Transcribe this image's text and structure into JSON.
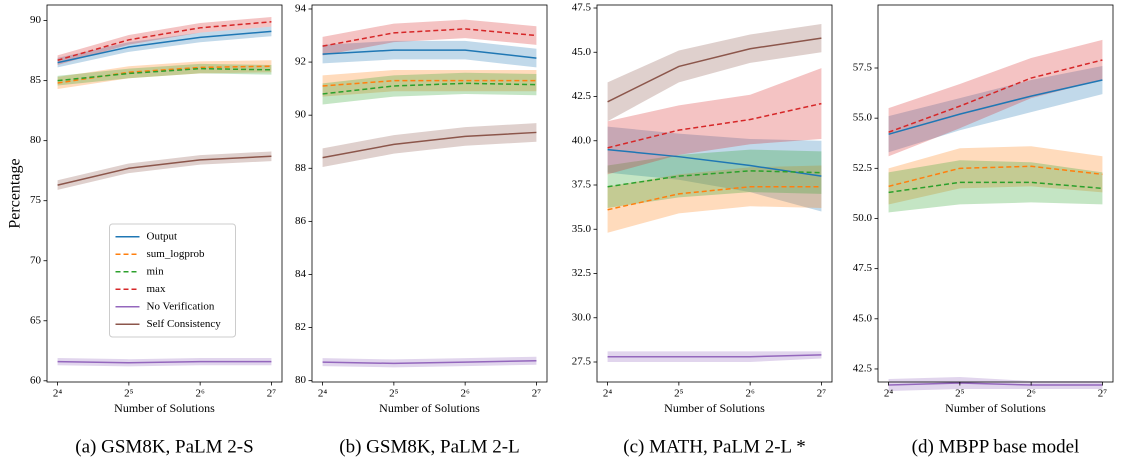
{
  "chart_data": [
    {
      "type": "line",
      "caption": "(a) GSM8K, PaLM 2-S",
      "ylabel": "Percentage",
      "xlabel": "Number of Solutions",
      "legend": "lower center",
      "x": [
        16,
        32,
        64,
        128
      ],
      "xscale": "log2",
      "xticks": [
        {
          "value": 16,
          "label": "2⁴"
        },
        {
          "value": 32,
          "label": "2⁵"
        },
        {
          "value": 64,
          "label": "2⁶"
        },
        {
          "value": 128,
          "label": "2⁷"
        }
      ],
      "ylim": [
        59.9,
        91.3
      ],
      "yticks": [
        60,
        65,
        70,
        75,
        80,
        85,
        90
      ],
      "series": [
        {
          "name": "Output",
          "color": "#1f77b4",
          "dashed": false,
          "values": [
            86.5,
            87.8,
            88.6,
            89.1
          ],
          "errors": [
            0.4,
            0.4,
            0.4,
            0.4
          ]
        },
        {
          "name": "sum_logprob",
          "color": "#ff7f0e",
          "dashed": true,
          "values": [
            84.8,
            85.7,
            86.1,
            86.2
          ],
          "errors": [
            0.5,
            0.5,
            0.5,
            0.5
          ]
        },
        {
          "name": "min",
          "color": "#2ca02c",
          "dashed": true,
          "values": [
            85.0,
            85.6,
            86.0,
            85.9
          ],
          "errors": [
            0.4,
            0.4,
            0.4,
            0.4
          ]
        },
        {
          "name": "max",
          "color": "#d62728",
          "dashed": true,
          "values": [
            86.7,
            88.4,
            89.4,
            89.9
          ],
          "errors": [
            0.4,
            0.4,
            0.4,
            0.4
          ]
        },
        {
          "name": "No Verification",
          "color": "#9467bd",
          "dashed": false,
          "values": [
            61.6,
            61.5,
            61.6,
            61.6
          ],
          "errors": [
            0.3,
            0.3,
            0.3,
            0.3
          ]
        },
        {
          "name": "Self Consistency",
          "color": "#8c564b",
          "dashed": false,
          "values": [
            76.3,
            77.7,
            78.4,
            78.7
          ],
          "errors": [
            0.4,
            0.4,
            0.4,
            0.4
          ]
        }
      ]
    },
    {
      "type": "line",
      "caption": "(b) GSM8K, PaLM 2-L",
      "xlabel": "Number of Solutions",
      "x": [
        16,
        32,
        64,
        128
      ],
      "xscale": "log2",
      "xticks": [
        {
          "value": 16,
          "label": "2⁴"
        },
        {
          "value": 32,
          "label": "2⁵"
        },
        {
          "value": 64,
          "label": "2⁶"
        },
        {
          "value": 128,
          "label": "2⁷"
        }
      ],
      "ylim": [
        79.95,
        94.15
      ],
      "yticks": [
        80,
        82,
        84,
        86,
        88,
        90,
        92,
        94
      ],
      "series": [
        {
          "color": "#1f77b4",
          "dashed": false,
          "values": [
            92.3,
            92.45,
            92.45,
            92.15
          ],
          "errors": [
            0.35,
            0.35,
            0.35,
            0.35
          ]
        },
        {
          "color": "#ff7f0e",
          "dashed": true,
          "values": [
            91.1,
            91.3,
            91.3,
            91.3
          ],
          "errors": [
            0.4,
            0.4,
            0.4,
            0.4
          ]
        },
        {
          "color": "#2ca02c",
          "dashed": true,
          "values": [
            90.8,
            91.1,
            91.2,
            91.15
          ],
          "errors": [
            0.4,
            0.4,
            0.4,
            0.4
          ]
        },
        {
          "color": "#d62728",
          "dashed": true,
          "values": [
            92.6,
            93.1,
            93.25,
            93.0
          ],
          "errors": [
            0.35,
            0.35,
            0.35,
            0.35
          ]
        },
        {
          "color": "#9467bd",
          "dashed": false,
          "values": [
            80.7,
            80.65,
            80.7,
            80.75
          ],
          "errors": [
            0.15,
            0.15,
            0.15,
            0.15
          ]
        },
        {
          "color": "#8c564b",
          "dashed": false,
          "values": [
            88.4,
            88.9,
            89.2,
            89.35
          ],
          "errors": [
            0.35,
            0.35,
            0.35,
            0.35
          ]
        }
      ]
    },
    {
      "type": "line",
      "caption": "(c) MATH, PaLM 2-L *",
      "xlabel": "Number of Solutions",
      "x": [
        16,
        32,
        64,
        128
      ],
      "xscale": "log2",
      "xticks": [
        {
          "value": 16,
          "label": "2⁴"
        },
        {
          "value": 32,
          "label": "2⁵"
        },
        {
          "value": 64,
          "label": "2⁶"
        },
        {
          "value": 128,
          "label": "2⁷"
        }
      ],
      "ylim": [
        26.37,
        47.67
      ],
      "yticks": [
        27.5,
        {
          "value": 30,
          "label": "30.0"
        },
        32.5,
        {
          "value": 35,
          "label": "35.0"
        },
        37.5,
        {
          "value": 40,
          "label": "40.0"
        },
        42.5,
        {
          "value": 45,
          "label": "45.0"
        },
        47.5
      ],
      "series": [
        {
          "color": "#1f77b4",
          "dashed": false,
          "values": [
            39.5,
            39.1,
            38.6,
            38.0
          ],
          "errors": [
            1.3,
            1.3,
            1.5,
            2.0
          ]
        },
        {
          "color": "#ff7f0e",
          "dashed": true,
          "values": [
            36.1,
            37.0,
            37.4,
            37.4
          ],
          "errors": [
            1.3,
            1.1,
            1.1,
            1.2
          ]
        },
        {
          "color": "#2ca02c",
          "dashed": true,
          "values": [
            37.4,
            38.0,
            38.3,
            38.2
          ],
          "errors": [
            1.2,
            1.2,
            1.2,
            1.2
          ]
        },
        {
          "color": "#d62728",
          "dashed": true,
          "values": [
            39.6,
            40.6,
            41.2,
            42.1
          ],
          "errors": [
            1.5,
            1.4,
            1.4,
            2.0
          ]
        },
        {
          "color": "#9467bd",
          "dashed": false,
          "values": [
            27.8,
            27.8,
            27.8,
            27.9
          ],
          "errors": [
            0.3,
            0.3,
            0.3,
            0.2
          ]
        },
        {
          "color": "#8c564b",
          "dashed": false,
          "values": [
            42.2,
            44.2,
            45.2,
            45.8
          ],
          "errors": [
            1.1,
            0.9,
            0.8,
            0.8
          ]
        }
      ]
    },
    {
      "type": "line",
      "caption": "(d) MBPP base model",
      "xlabel": "Number of Solutions",
      "x": [
        16,
        32,
        64,
        128
      ],
      "xscale": "log2",
      "xticks": [
        {
          "value": 16,
          "label": "2⁴"
        },
        {
          "value": 32,
          "label": "2⁵"
        },
        {
          "value": 64,
          "label": "2⁶"
        },
        {
          "value": 128,
          "label": "2⁷"
        }
      ],
      "ylim": [
        41.85,
        60.64
      ],
      "yticks": [
        42.5,
        {
          "value": 45,
          "label": "45.0"
        },
        47.5,
        {
          "value": 50,
          "label": "50.0"
        },
        52.5,
        {
          "value": 55,
          "label": "55.0"
        },
        57.5
      ],
      "series": [
        {
          "color": "#1f77b4",
          "dashed": false,
          "values": [
            54.2,
            55.2,
            56.1,
            56.9
          ],
          "errors": [
            0.9,
            0.8,
            0.8,
            0.7
          ]
        },
        {
          "color": "#ff7f0e",
          "dashed": true,
          "values": [
            51.6,
            52.5,
            52.6,
            52.2
          ],
          "errors": [
            0.9,
            1.0,
            1.0,
            0.9
          ]
        },
        {
          "color": "#2ca02c",
          "dashed": true,
          "values": [
            51.3,
            51.8,
            51.8,
            51.5
          ],
          "errors": [
            1.0,
            1.1,
            1.0,
            0.8
          ]
        },
        {
          "color": "#d62728",
          "dashed": true,
          "values": [
            54.3,
            55.6,
            57.0,
            57.9
          ],
          "errors": [
            1.2,
            1.1,
            1.0,
            1.0
          ]
        },
        {
          "color": "#9467bd",
          "dashed": false,
          "values": [
            41.7,
            41.8,
            41.7,
            41.7
          ],
          "errors": [
            0.3,
            0.3,
            0.2,
            0.2
          ]
        }
      ]
    }
  ]
}
